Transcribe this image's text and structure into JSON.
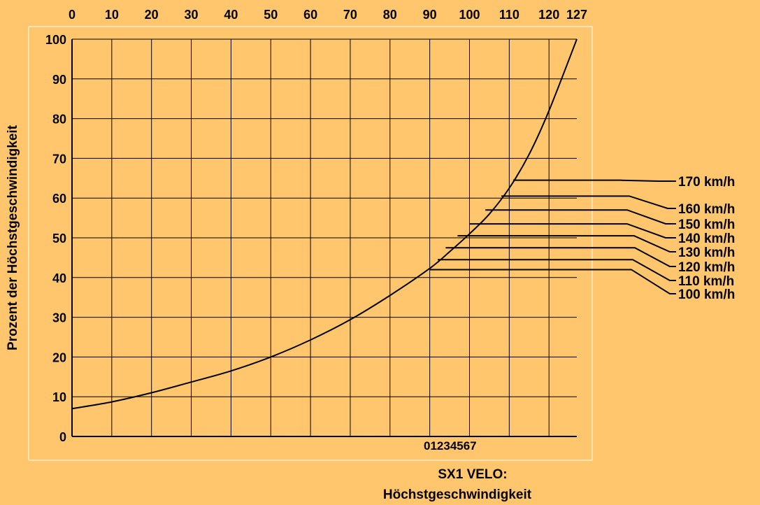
{
  "chart_data": {
    "type": "line",
    "title": "",
    "ylabel": "Prozent der Höchstgeschwindigkeit",
    "xlabel_line1": "SX1 VELO:",
    "xlabel_line2": "Höchstgeschwindigkeit",
    "x_ticks": [
      "0",
      "10",
      "20",
      "30",
      "40",
      "50",
      "60",
      "70",
      "80",
      "90",
      "100",
      "110",
      "120",
      "127"
    ],
    "x_tick_values": [
      0,
      10,
      20,
      30,
      40,
      50,
      60,
      70,
      80,
      90,
      100,
      110,
      120,
      127
    ],
    "y_ticks": [
      "0",
      "10",
      "20",
      "30",
      "40",
      "50",
      "60",
      "70",
      "80",
      "90",
      "100"
    ],
    "y_tick_values": [
      0,
      10,
      20,
      30,
      40,
      50,
      60,
      70,
      80,
      90,
      100
    ],
    "xlim": [
      0,
      127
    ],
    "ylim": [
      0,
      100
    ],
    "grid": true,
    "series": [
      {
        "x": [
          0,
          10,
          20,
          30,
          40,
          50,
          60,
          70,
          80,
          90,
          95,
          100,
          105,
          110,
          115,
          120,
          127
        ],
        "y": [
          7,
          8.7,
          11,
          13.7,
          16.5,
          20,
          24.3,
          29.4,
          35.5,
          42.3,
          46.5,
          51,
          56,
          62.5,
          71,
          82,
          100
        ]
      }
    ],
    "level_markers": [
      "0",
      "1",
      "2",
      "3",
      "4",
      "5",
      "6",
      "7"
    ],
    "speed_labels": [
      {
        "label": "100 km/h",
        "x": 90,
        "y": 42
      },
      {
        "label": "110 km/h",
        "x": 92,
        "y": 44.5
      },
      {
        "label": "120 km/h",
        "x": 94,
        "y": 47.5
      },
      {
        "label": "130 km/h",
        "x": 97,
        "y": 50.5
      },
      {
        "label": "140 km/h",
        "x": 100,
        "y": 53.5
      },
      {
        "label": "150 km/h",
        "x": 104,
        "y": 57
      },
      {
        "label": "160 km/h",
        "x": 108,
        "y": 60.5
      },
      {
        "label": "170 km/h",
        "x": 111,
        "y": 64.5
      }
    ],
    "colors": {
      "background": "#FFC66E",
      "ink": "#000000",
      "frame": "#FFFFFF"
    }
  }
}
